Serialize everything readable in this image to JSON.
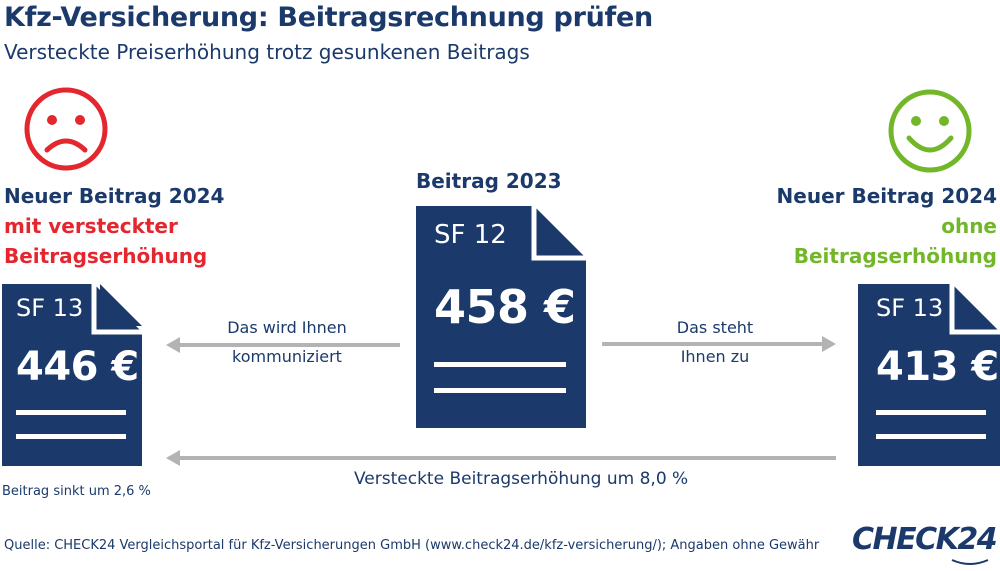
{
  "header": {
    "title": "Kfz-Versicherung: Beitragsrechnung prüfen",
    "subtitle": "Versteckte Preiserhöhung trotz gesunkenen Beitrags"
  },
  "left": {
    "icon": "sad-face-icon",
    "heading_line1": "Neuer Beitrag 2024",
    "heading_line2": "mit versteckter",
    "heading_line3": "Beitragserhöhung",
    "sf": "SF 13",
    "amount": "446 €",
    "note": "Beitrag sinkt um 2,6 %"
  },
  "center": {
    "heading": "Beitrag 2023",
    "sf": "SF 12",
    "amount": "458 €"
  },
  "right": {
    "icon": "happy-face-icon",
    "heading_line1": "Neuer Beitrag 2024",
    "heading_line2": "ohne",
    "heading_line3": "Beitragserhöhung",
    "sf": "SF 13",
    "amount": "413 €"
  },
  "arrows": {
    "left_label_line1": "Das wird Ihnen",
    "left_label_line2": "kommuniziert",
    "right_label_line1": "Das steht",
    "right_label_line2": "Ihnen zu",
    "bottom_label": "Versteckte Beitragserhöhung um 8,0 %"
  },
  "footer": {
    "source": "Quelle: CHECK24 Vergleichsportal für Kfz-Versicherungen GmbH (www.check24.de/kfz-versicherung/); Angaben ohne Gewähr",
    "logo": "CHECK24"
  },
  "colors": {
    "navy": "#1b3a6b",
    "red": "#e4262f",
    "green": "#72b62a",
    "arrow_gray": "#b3b3b3"
  }
}
